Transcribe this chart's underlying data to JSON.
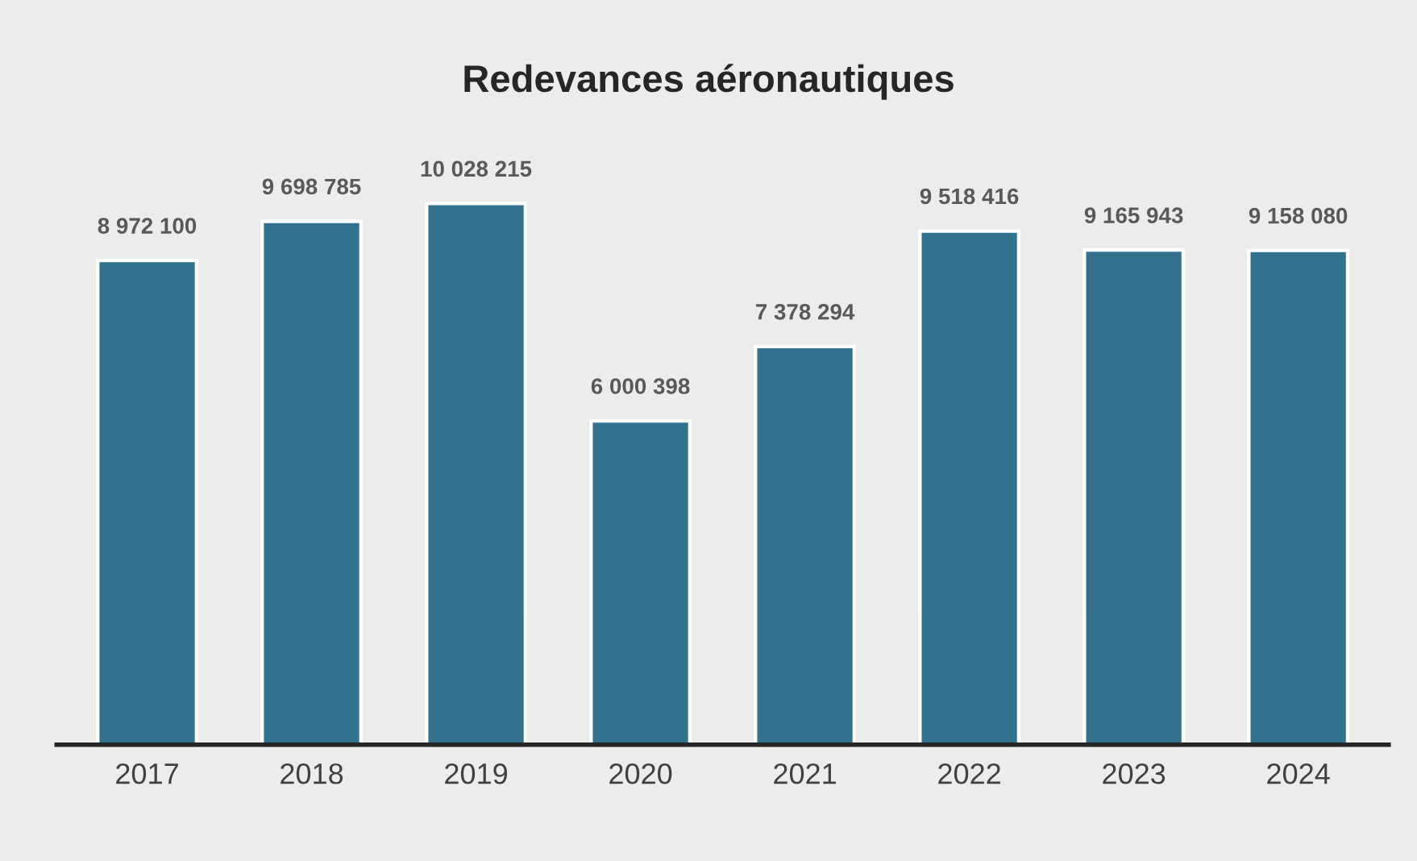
{
  "chart_data": {
    "type": "bar",
    "title": "Redevances aéronautiques",
    "categories": [
      "2017",
      "2018",
      "2019",
      "2020",
      "2021",
      "2022",
      "2023",
      "2024"
    ],
    "values": [
      8972100,
      9698785,
      10028215,
      6000398,
      7378294,
      9518416,
      9165943,
      9158080
    ],
    "value_labels": [
      "8 972 100",
      "9 698 785",
      "10 028 215",
      "6 000 398",
      "7 378 294",
      "9 518 416",
      "9 165 943",
      "9 158 080"
    ],
    "color": "#32728f",
    "grid": false,
    "tick_labels": "x"
  }
}
